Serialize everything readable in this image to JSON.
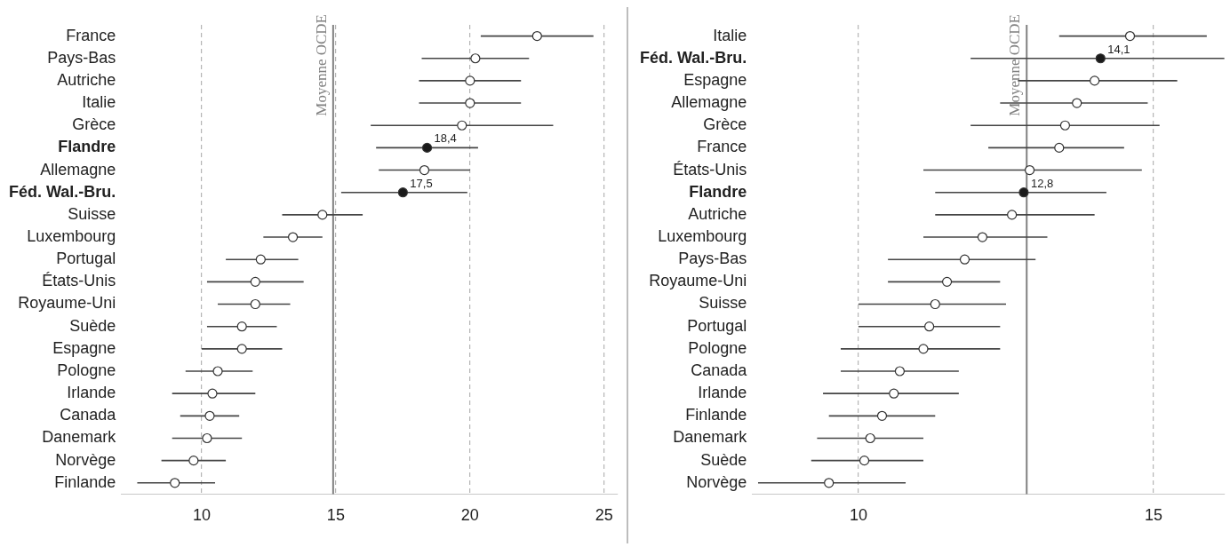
{
  "chart_data": [
    {
      "type": "scatter",
      "orientation": "horizontal",
      "marker": "circle",
      "grid": "x",
      "categories": [
        "France",
        "Pays-Bas",
        "Autriche",
        "Italie",
        "Grèce",
        "Flandre",
        "Allemagne",
        "Féd. Wal.-Bru.",
        "Suisse",
        "Luxembourg",
        "Portugal",
        "États-Unis",
        "Royaume-Uni",
        "Suède",
        "Espagne",
        "Pologne",
        "Irlande",
        "Canada",
        "Danemark",
        "Norvège",
        "Finlande"
      ],
      "values": [
        22.5,
        20.2,
        20.0,
        20.0,
        19.7,
        18.4,
        18.3,
        17.5,
        14.5,
        13.4,
        12.2,
        12.0,
        12.0,
        11.5,
        11.5,
        10.6,
        10.4,
        10.3,
        10.2,
        9.7,
        9.0
      ],
      "errors": [
        [
          20.4,
          24.6
        ],
        [
          18.2,
          22.2
        ],
        [
          18.1,
          21.9
        ],
        [
          18.1,
          21.9
        ],
        [
          16.3,
          23.1
        ],
        [
          16.5,
          20.3
        ],
        [
          16.6,
          20.0
        ],
        [
          15.2,
          19.9
        ],
        [
          13.0,
          16.0
        ],
        [
          12.3,
          14.5
        ],
        [
          10.9,
          13.6
        ],
        [
          10.2,
          13.8
        ],
        [
          10.6,
          13.3
        ],
        [
          10.2,
          12.8
        ],
        [
          10.0,
          13.0
        ],
        [
          9.4,
          11.9
        ],
        [
          8.9,
          12.0
        ],
        [
          9.2,
          11.4
        ],
        [
          8.9,
          11.5
        ],
        [
          8.5,
          10.9
        ],
        [
          7.6,
          10.5
        ]
      ],
      "colors": [
        "#ffffff",
        "#ffffff",
        "#ffffff",
        "#ffffff",
        "#ffffff",
        "#1a1a1a",
        "#ffffff",
        "#1a1a1a",
        "#ffffff",
        "#ffffff",
        "#ffffff",
        "#ffffff",
        "#ffffff",
        "#ffffff",
        "#ffffff",
        "#ffffff",
        "#ffffff",
        "#ffffff",
        "#ffffff",
        "#ffffff",
        "#ffffff"
      ],
      "value_labels": [
        null,
        null,
        null,
        null,
        null,
        "18,4",
        null,
        "17,5",
        null,
        null,
        null,
        null,
        null,
        null,
        null,
        null,
        null,
        null,
        null,
        null,
        null
      ],
      "xlim": [
        7,
        25.5
      ],
      "xticks": [
        10,
        15,
        20,
        25
      ],
      "ref_lines": [
        {
          "axis": "x",
          "value": 14.9,
          "label": "Moyenne OCDE",
          "color": "#808080"
        }
      ]
    },
    {
      "type": "scatter",
      "orientation": "horizontal",
      "marker": "circle",
      "grid": "x",
      "categories": [
        "Italie",
        "Féd. Wal.-Bru.",
        "Espagne",
        "Allemagne",
        "Grèce",
        "France",
        "États-Unis",
        "Flandre",
        "Autriche",
        "Luxembourg",
        "Pays-Bas",
        "Royaume-Uni",
        "Suisse",
        "Portugal",
        "Pologne",
        "Canada",
        "Irlande",
        "Finlande",
        "Danemark",
        "Suède",
        "Norvège"
      ],
      "values": [
        14.6,
        14.1,
        14.0,
        13.7,
        13.5,
        13.4,
        12.9,
        12.8,
        12.6,
        12.1,
        11.8,
        11.5,
        11.3,
        11.2,
        11.1,
        10.7,
        10.6,
        10.4,
        10.2,
        10.1,
        9.5
      ],
      "errors": [
        [
          13.4,
          15.9
        ],
        [
          11.9,
          16.2
        ],
        [
          12.7,
          15.4
        ],
        [
          12.4,
          14.9
        ],
        [
          11.9,
          15.1
        ],
        [
          12.2,
          14.5
        ],
        [
          11.1,
          14.8
        ],
        [
          11.3,
          14.2
        ],
        [
          11.3,
          14.0
        ],
        [
          11.1,
          13.2
        ],
        [
          10.5,
          13.0
        ],
        [
          10.5,
          12.4
        ],
        [
          10.0,
          12.5
        ],
        [
          10.0,
          12.4
        ],
        [
          9.7,
          12.4
        ],
        [
          9.7,
          11.7
        ],
        [
          9.4,
          11.7
        ],
        [
          9.5,
          11.3
        ],
        [
          9.3,
          11.1
        ],
        [
          9.2,
          11.1
        ],
        [
          8.3,
          10.8
        ]
      ],
      "colors": [
        "#ffffff",
        "#1a1a1a",
        "#ffffff",
        "#ffffff",
        "#ffffff",
        "#ffffff",
        "#ffffff",
        "#1a1a1a",
        "#ffffff",
        "#ffffff",
        "#ffffff",
        "#ffffff",
        "#ffffff",
        "#ffffff",
        "#ffffff",
        "#ffffff",
        "#ffffff",
        "#ffffff",
        "#ffffff",
        "#ffffff",
        "#ffffff"
      ],
      "value_labels": [
        null,
        "14,1",
        null,
        null,
        null,
        null,
        null,
        "12,8",
        null,
        null,
        null,
        null,
        null,
        null,
        null,
        null,
        null,
        null,
        null,
        null,
        null
      ],
      "xlim": [
        8.2,
        16.2
      ],
      "xticks": [
        10,
        15
      ],
      "ref_lines": [
        {
          "axis": "x",
          "value": 12.85,
          "label": "Moyenne OCDE",
          "color": "#808080"
        }
      ]
    }
  ]
}
